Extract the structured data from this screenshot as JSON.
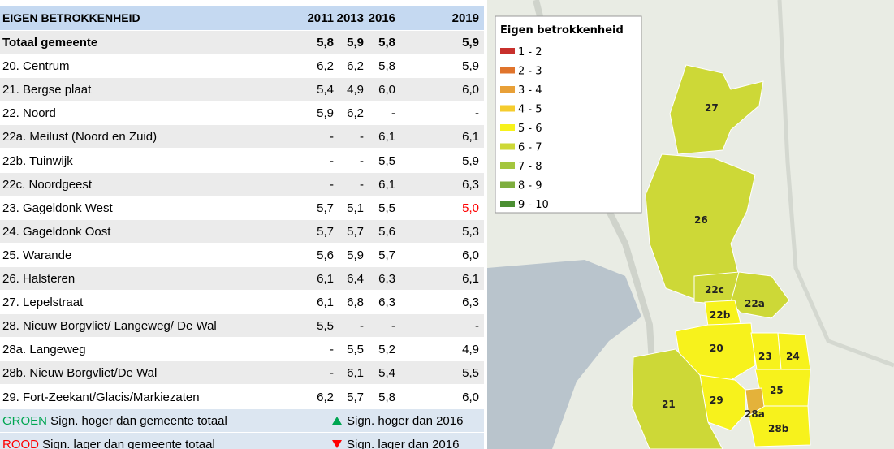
{
  "table": {
    "header": {
      "title": "EIGEN BETROKKENHEID",
      "years": [
        "2011",
        "2013",
        "2016",
        "2019"
      ]
    },
    "rows": [
      {
        "label": "Totaal gemeente",
        "values": [
          "5,8",
          "5,9",
          "5,8",
          "5,9"
        ],
        "bold": true
      },
      {
        "label": "20. Centrum",
        "values": [
          "6,2",
          "6,2",
          "5,8",
          "5,9"
        ]
      },
      {
        "label": "21. Bergse plaat",
        "values": [
          "5,4",
          "4,9",
          "6,0",
          "6,0"
        ]
      },
      {
        "label": "22. Noord",
        "values": [
          "5,9",
          "6,2",
          "-",
          "-"
        ]
      },
      {
        "label": "22a. Meilust (Noord en Zuid)",
        "values": [
          "-",
          "-",
          "6,1",
          "6,1"
        ]
      },
      {
        "label": "22b. Tuinwijk",
        "values": [
          "-",
          "-",
          "5,5",
          "5,9"
        ]
      },
      {
        "label": "22c. Noordgeest",
        "values": [
          "-",
          "-",
          "6,1",
          "6,3"
        ]
      },
      {
        "label": "23. Gageldonk West",
        "values": [
          "5,7",
          "5,1",
          "5,5",
          "5,0"
        ],
        "flag": {
          "col": 3,
          "color": "#ff0000"
        }
      },
      {
        "label": "24. Gageldonk Oost",
        "values": [
          "5,7",
          "5,7",
          "5,6",
          "5,3"
        ]
      },
      {
        "label": "25. Warande",
        "values": [
          "5,6",
          "5,9",
          "5,7",
          "6,0"
        ]
      },
      {
        "label": "26. Halsteren",
        "values": [
          "6,1",
          "6,4",
          "6,3",
          "6,1"
        ]
      },
      {
        "label": "27. Lepelstraat",
        "values": [
          "6,1",
          "6,8",
          "6,3",
          "6,3"
        ]
      },
      {
        "label": "28. Nieuw Borgvliet/ Langeweg/ De Wal",
        "values": [
          "5,5",
          "-",
          "-",
          "-"
        ]
      },
      {
        "label": "28a. Langeweg",
        "values": [
          "-",
          "5,5",
          "5,2",
          "4,9"
        ]
      },
      {
        "label": "28b. Nieuw Borgvliet/De Wal",
        "values": [
          "-",
          "6,1",
          "5,4",
          "5,5"
        ]
      },
      {
        "label": "29. Fort-Zeekant/Glacis/Markiezaten",
        "values": [
          "6,2",
          "5,7",
          "5,8",
          "6,0"
        ]
      }
    ],
    "legend_rows": [
      {
        "keyword": "GROEN",
        "keyword_color": "#00a651",
        "text": " Sign. hoger dan gemeente totaal",
        "note": "Sign. hoger dan 2016",
        "symbol_color": "#00a651"
      },
      {
        "keyword": "ROOD",
        "keyword_color": "#ff0000",
        "text": " Sign. lager dan gemeente totaal",
        "note": "Sign. lager dan 2016",
        "symbol_color": "#ff0000"
      }
    ]
  },
  "map": {
    "legend": {
      "title": "Eigen betrokkenheid",
      "items": [
        {
          "label": "1 - 2",
          "color": "#c8302c"
        },
        {
          "label": "2 - 3",
          "color": "#e0742c"
        },
        {
          "label": "3 - 4",
          "color": "#e8a038"
        },
        {
          "label": "4 - 5",
          "color": "#f5cc2e"
        },
        {
          "label": "5 - 6",
          "color": "#f7f21c"
        },
        {
          "label": "6 - 7",
          "color": "#cdd837"
        },
        {
          "label": "7 - 8",
          "color": "#a4c63e"
        },
        {
          "label": "8 - 9",
          "color": "#7eae3e"
        },
        {
          "label": "9 - 10",
          "color": "#4b8f32"
        }
      ]
    },
    "labels": [
      "27",
      "26",
      "22c",
      "22a",
      "22b",
      "20",
      "23",
      "24",
      "25",
      "29",
      "28a",
      "21",
      "28b"
    ]
  }
}
